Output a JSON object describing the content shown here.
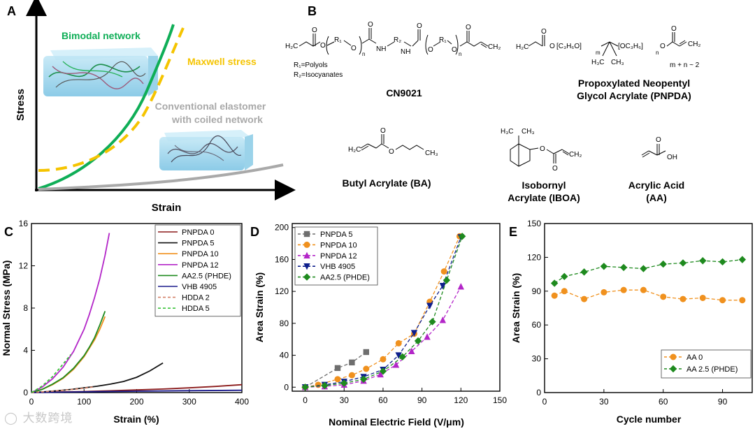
{
  "panels": {
    "a": {
      "letter": "A",
      "xlabel": "Strain",
      "ylabel": "Stress",
      "labels": {
        "bimodal": "Bimodal network",
        "maxwell": "Maxwell stress",
        "conventional_1": "Conventional elastomer",
        "conventional_2": "with coiled network"
      },
      "colors": {
        "bimodal": "#0fae57",
        "maxwell": "#f5c400",
        "conventional": "#a9a9a9"
      }
    },
    "b": {
      "letter": "B",
      "cn9021": {
        "name": "CN9021",
        "r1_label": "R₁=Polyols",
        "r2_label": "R₂=Isocyanates",
        "atoms": {
          "r1": "R₁",
          "r2": "R₂",
          "nh1": "NH",
          "nh2": "NH",
          "n1": "n",
          "n2": "n",
          "ch2_left": "H₂C",
          "ch2_right": "CH₂",
          "o": "O"
        }
      },
      "pnpda": {
        "name_1": "Propoxylated Neopentyl",
        "name_2": "Glycol Acrylate (PNPDA)",
        "note": "m + n ~ 2",
        "atoms": {
          "ch2_left": "H₂C",
          "ch2_right": "CH₂",
          "c3h6o": "[C₃H₆O]",
          "oc3h6": "[OC₃H₆]",
          "m": "m",
          "n": "n",
          "h3c": "H₃C",
          "ch3": "CH₃",
          "o": "O"
        }
      },
      "ba": {
        "name": "Butyl Acrylate (BA)",
        "atoms": {
          "h2c": "H₂C",
          "ch3": "CH₃",
          "o": "O"
        }
      },
      "iboa": {
        "name_1": "Isobornyl",
        "name_2": "Acrylate (IBOA)",
        "atoms": {
          "h3c": "H₃C",
          "ch3": "CH₃",
          "ch2": "CH₂",
          "o": "O"
        }
      },
      "aa": {
        "name_1": "Acrylic Acid",
        "name_2": "(AA)",
        "atoms": {
          "oh": "OH",
          "o": "O"
        }
      }
    },
    "c": {
      "letter": "C"
    },
    "d": {
      "letter": "D"
    },
    "e": {
      "letter": "E"
    }
  },
  "watermark": "大数跨境",
  "chart_data": [
    {
      "id": "C",
      "type": "line",
      "xlabel": "Strain (%)",
      "ylabel": "Normal Stress (MPa)",
      "xlim": [
        0,
        400
      ],
      "ylim": [
        0,
        16
      ],
      "xticks": [
        0,
        100,
        200,
        300,
        400
      ],
      "yticks": [
        0,
        4,
        8,
        12,
        16
      ],
      "legend_position": "top-right",
      "series": [
        {
          "name": "PNPDA 0",
          "color": "#8b1a1a",
          "dash": "",
          "x": [
            0,
            50,
            100,
            150,
            200,
            250,
            300,
            350,
            400
          ],
          "y": [
            0,
            0.05,
            0.1,
            0.17,
            0.25,
            0.34,
            0.45,
            0.58,
            0.75
          ]
        },
        {
          "name": "PNPDA 5",
          "color": "#111111",
          "dash": "",
          "x": [
            0,
            25,
            50,
            75,
            100,
            125,
            150,
            175,
            200,
            225,
            250
          ],
          "y": [
            0,
            0.08,
            0.18,
            0.3,
            0.45,
            0.6,
            0.8,
            1.05,
            1.45,
            2.05,
            2.8
          ]
        },
        {
          "name": "PNPDA 10",
          "color": "#f0911e",
          "dash": "",
          "x": [
            0,
            20,
            40,
            60,
            80,
            100,
            110,
            120,
            130,
            140
          ],
          "y": [
            0,
            0.3,
            0.75,
            1.35,
            2.2,
            3.4,
            4.2,
            5.0,
            6.0,
            7.2
          ]
        },
        {
          "name": "PNPDA 12",
          "color": "#b326c8",
          "dash": "",
          "x": [
            0,
            20,
            40,
            60,
            80,
            100,
            110,
            120,
            130,
            140,
            148
          ],
          "y": [
            0,
            0.5,
            1.3,
            2.4,
            3.9,
            6.0,
            7.4,
            9.0,
            10.8,
            13.0,
            15.1
          ]
        },
        {
          "name": "AA2.5 (PHDE)",
          "color": "#1e8a1e",
          "dash": "",
          "x": [
            0,
            20,
            40,
            60,
            80,
            100,
            110,
            120,
            130,
            140
          ],
          "y": [
            0,
            0.3,
            0.8,
            1.4,
            2.3,
            3.5,
            4.3,
            5.2,
            6.4,
            7.7
          ]
        },
        {
          "name": "VHB 4905",
          "color": "#1a1a8c",
          "dash": "",
          "x": [
            0,
            100,
            200,
            300,
            400
          ],
          "y": [
            0,
            0.07,
            0.13,
            0.18,
            0.22
          ]
        },
        {
          "name": "HDDA 2",
          "color": "#d4826a",
          "dash": "4,3",
          "x": [
            0,
            30,
            60,
            90,
            120
          ],
          "y": [
            0,
            0.1,
            0.22,
            0.36,
            0.55
          ]
        },
        {
          "name": "HDDA 5",
          "color": "#3cc43c",
          "dash": "4,3",
          "x": [
            0,
            20,
            40,
            60,
            75
          ],
          "y": [
            0,
            0.6,
            1.5,
            2.7,
            3.6
          ]
        }
      ]
    },
    {
      "id": "D",
      "type": "line",
      "xlabel": "Nominal Electric Field (V/μm)",
      "ylabel": "Area Strain (%)",
      "xlim": [
        -10,
        150
      ],
      "ylim": [
        -5,
        205
      ],
      "xticks": [
        0,
        30,
        60,
        90,
        120,
        150
      ],
      "yticks": [
        0,
        40,
        80,
        120,
        160,
        200
      ],
      "legend_position": "top-left",
      "series": [
        {
          "name": "PNPDA 5",
          "color": "#6e6e6e",
          "marker": "square",
          "x": [
            0,
            25,
            36,
            47
          ],
          "y": [
            0,
            24,
            31,
            44
          ]
        },
        {
          "name": "PNPDA 10",
          "color": "#f0911e",
          "marker": "circle",
          "x": [
            0,
            10,
            25,
            36,
            47,
            60,
            72,
            84,
            96,
            107,
            119
          ],
          "y": [
            0,
            3,
            10,
            15,
            23,
            35,
            55,
            67,
            107,
            145,
            189
          ]
        },
        {
          "name": "PNPDA 12",
          "color": "#b326c8",
          "marker": "triangle-up",
          "x": [
            0,
            15,
            30,
            45,
            58,
            70,
            82,
            94,
            106,
            120
          ],
          "y": [
            0,
            1,
            3,
            8,
            16,
            28,
            45,
            63,
            84,
            126
          ]
        },
        {
          "name": "VHB 4905",
          "color": "#0e1f8c",
          "marker": "triangle-down",
          "x": [
            0,
            15,
            30,
            45,
            60,
            72,
            84,
            96,
            106,
            120
          ],
          "y": [
            0,
            3,
            7,
            13,
            22,
            40,
            68,
            102,
            127,
            188
          ]
        },
        {
          "name": "AA2.5 (PHDE)",
          "color": "#1e8a1e",
          "marker": "diamond",
          "x": [
            0,
            15,
            30,
            45,
            60,
            75,
            87,
            98,
            109,
            121
          ],
          "y": [
            0,
            2,
            5,
            10,
            20,
            38,
            58,
            82,
            134,
            189
          ]
        }
      ]
    },
    {
      "id": "E",
      "type": "line",
      "xlabel": "Cycle number",
      "ylabel": "Area Strain (%)",
      "xlim": [
        0,
        105
      ],
      "ylim": [
        0,
        150
      ],
      "xticks": [
        0,
        30,
        60,
        90
      ],
      "yticks": [
        0,
        30,
        60,
        90,
        120,
        150
      ],
      "legend_position": "bottom-right",
      "series": [
        {
          "name": "AA 0",
          "color": "#f0911e",
          "marker": "circle",
          "x": [
            5,
            10,
            20,
            30,
            40,
            50,
            60,
            70,
            80,
            90,
            100
          ],
          "y": [
            86,
            90,
            83,
            89,
            91,
            91,
            85,
            83,
            84,
            82,
            82
          ]
        },
        {
          "name": "AA 2.5 (PHDE)",
          "color": "#1e8a1e",
          "marker": "diamond",
          "x": [
            5,
            10,
            20,
            30,
            40,
            50,
            60,
            70,
            80,
            90,
            100
          ],
          "y": [
            97,
            103,
            107,
            112,
            111,
            110,
            114,
            115,
            117,
            116,
            118
          ]
        }
      ]
    }
  ]
}
